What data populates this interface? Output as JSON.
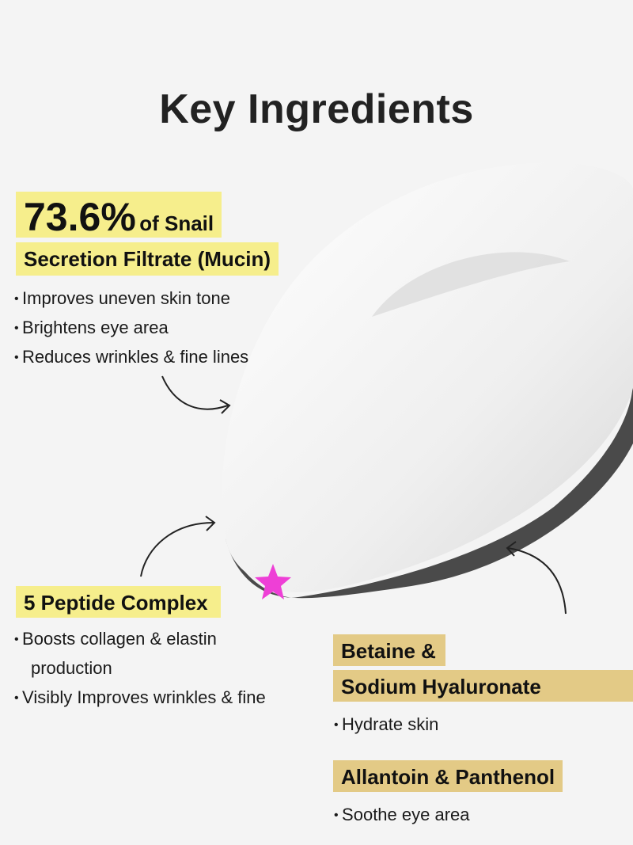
{
  "title": "Key Ingredients",
  "colors": {
    "highlight_yellow": "#f6ee8c",
    "highlight_gold": "#e3ca86",
    "star": "#ee3fd6"
  },
  "icons": [
    "curved-arrow-icon",
    "star-icon"
  ],
  "snail": {
    "percent": "73.6%",
    "line1_suffix": "of Snail",
    "line2": "Secretion Filtrate (Mucin)",
    "bullets": [
      "Improves uneven skin tone",
      "Brightens eye area",
      "Reduces wrinkles & fine lines"
    ]
  },
  "peptide": {
    "heading": "5 Peptide Complex",
    "bullets": [
      "Boosts collagen & elastin",
      "production",
      "Visibly Improves wrinkles & fine"
    ]
  },
  "betaine": {
    "line1": "Betaine &",
    "line2": "Sodium Hyaluronate",
    "bullets": [
      "Hydrate skin"
    ]
  },
  "allantoin": {
    "heading": "Allantoin & Panthenol",
    "bullets": [
      "Soothe eye area"
    ]
  }
}
